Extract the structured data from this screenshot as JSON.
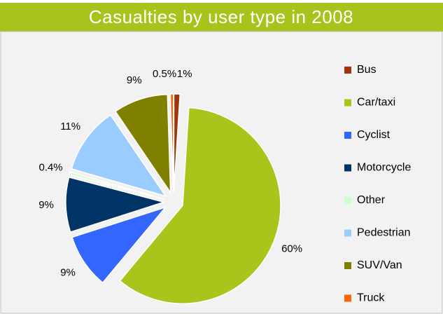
{
  "chart_data": {
    "type": "pie",
    "title": "Casualties by user type in 2008",
    "categories": [
      "Bus",
      "Car/taxi",
      "Cyclist",
      "Motorcycle",
      "Other",
      "Pedestrian",
      "SUV/Van",
      "Truck"
    ],
    "values": [
      1,
      60,
      9,
      9,
      0.4,
      11,
      9,
      0.5
    ],
    "value_labels": [
      "1%",
      "60%",
      "9%",
      "9%",
      "0.4%",
      "11%",
      "9%",
      "0.5%"
    ],
    "colors": [
      "#a0340a",
      "#a9c41a",
      "#3366ff",
      "#003366",
      "#ccffcc",
      "#99ccff",
      "#808000",
      "#ff6600"
    ],
    "legend": "right"
  }
}
